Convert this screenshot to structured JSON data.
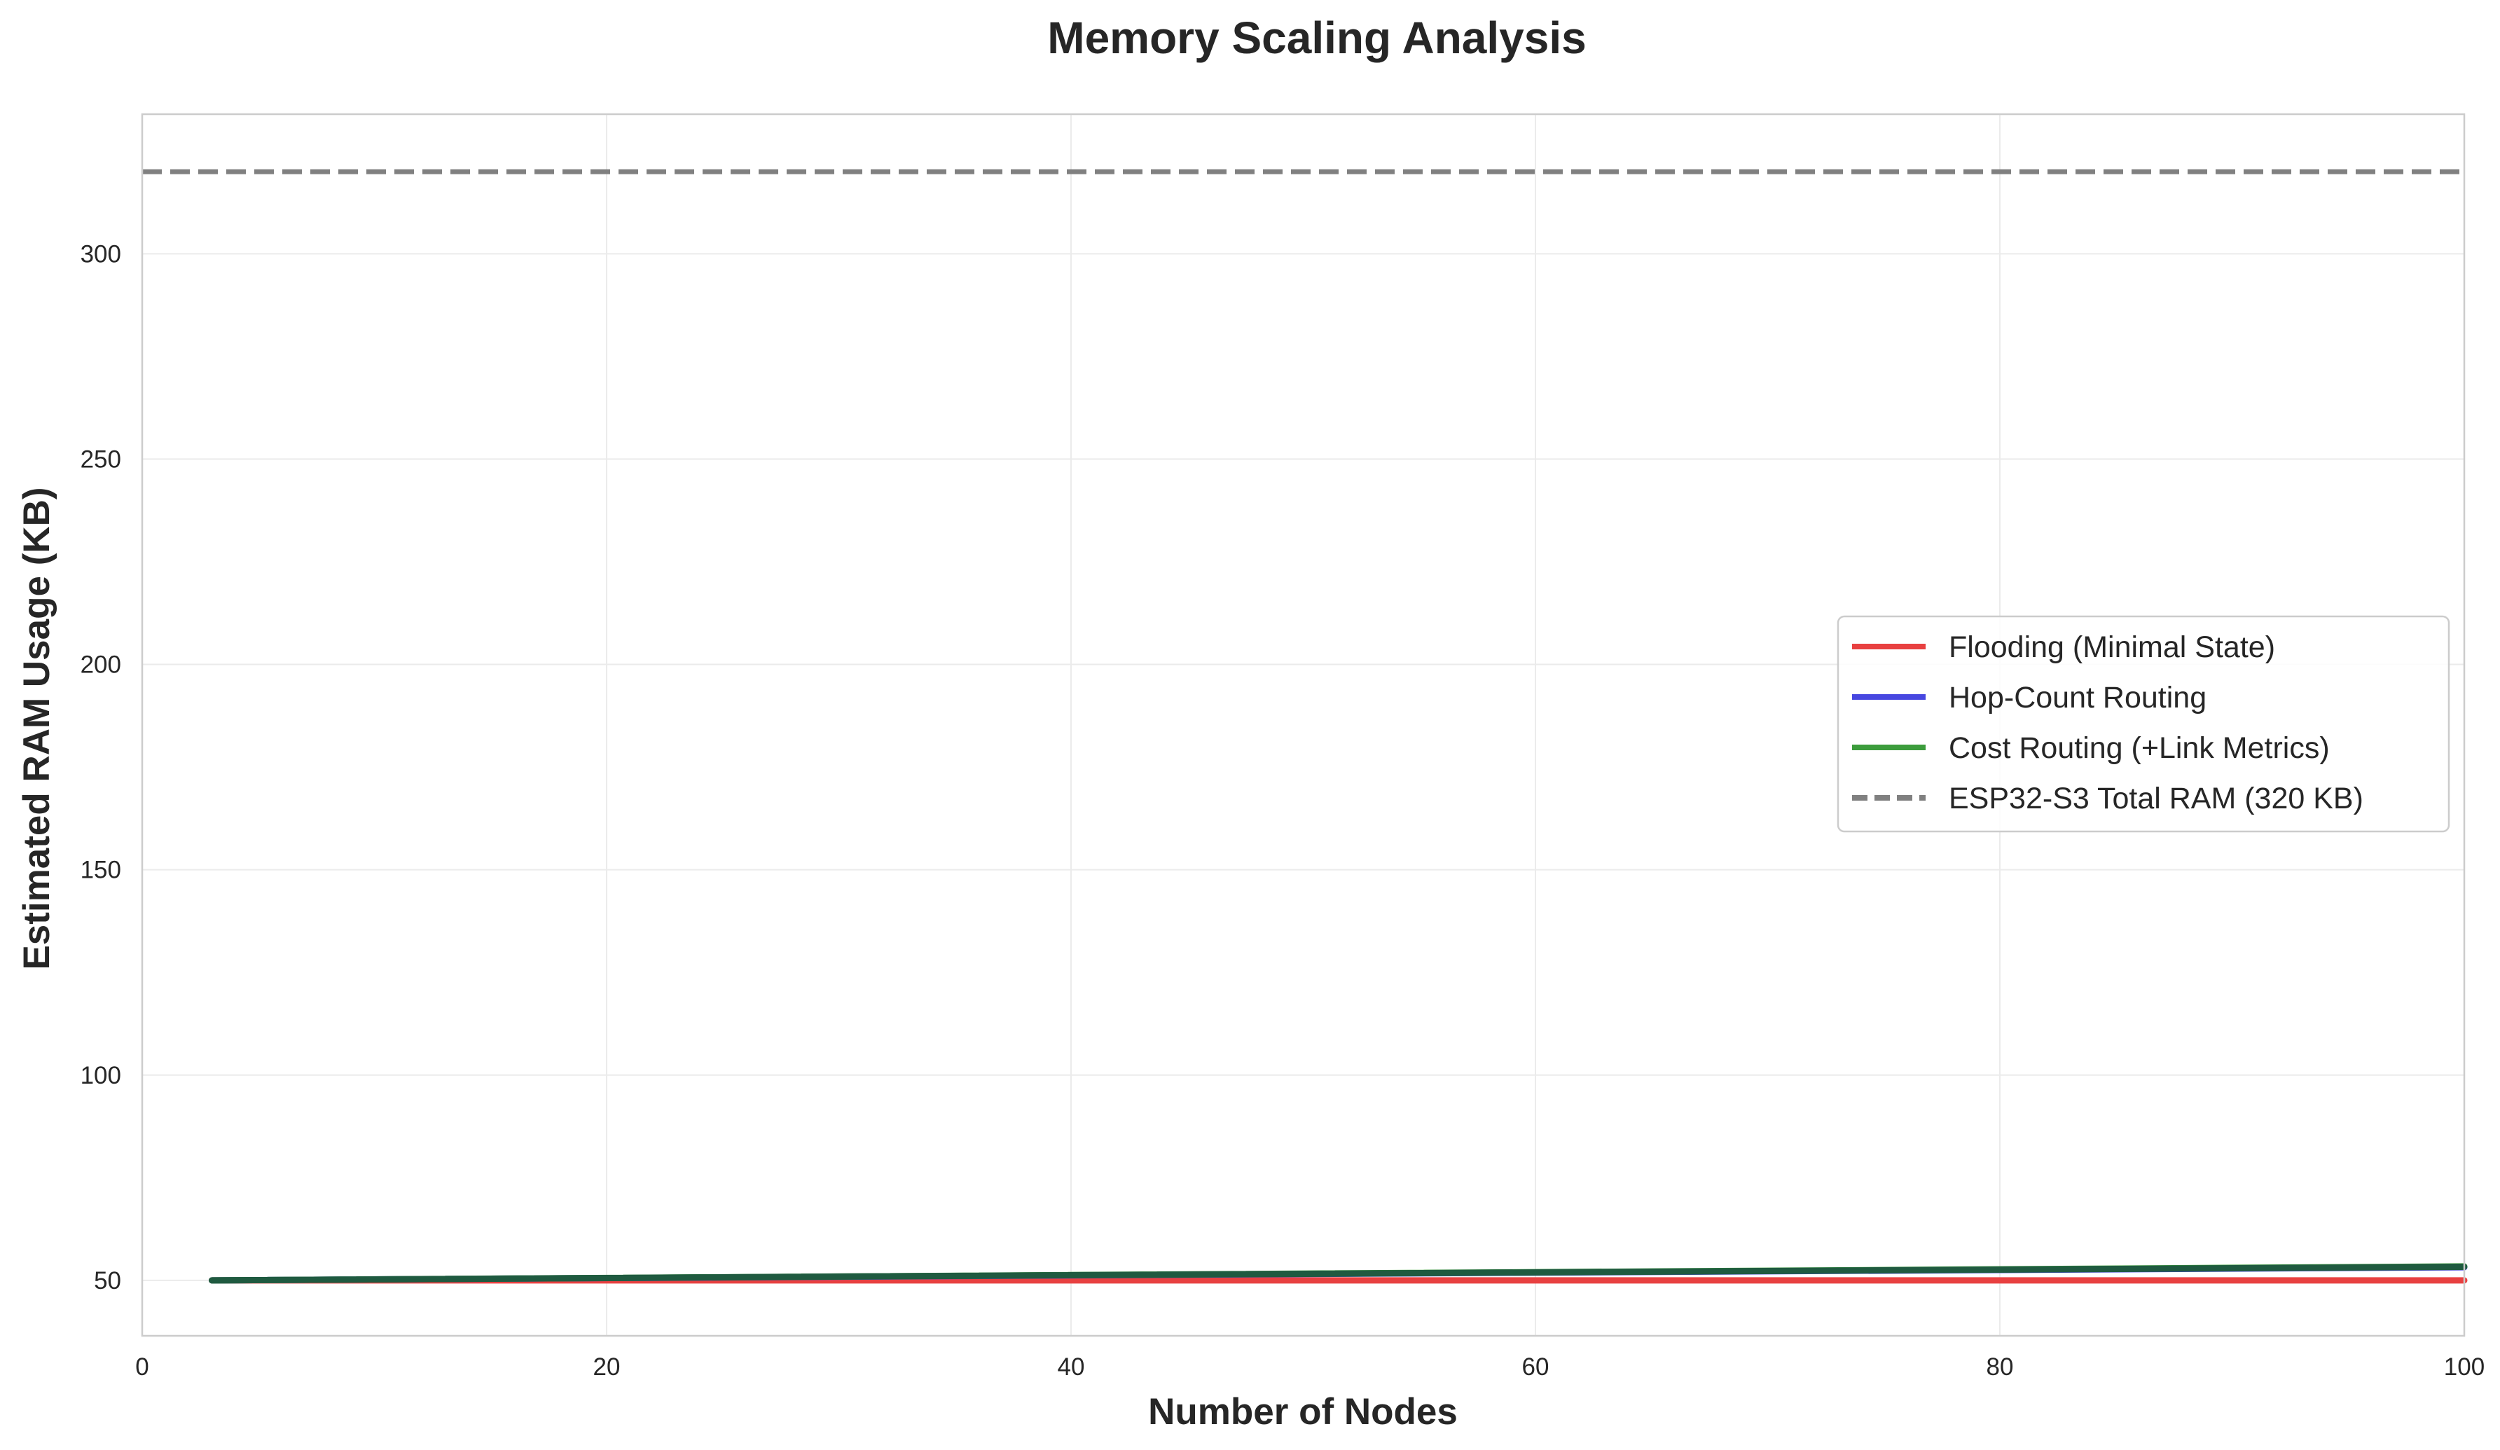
{
  "chart_data": {
    "type": "line",
    "title": "Memory Scaling Analysis",
    "xlabel": "Number of Nodes",
    "ylabel": "Estimated RAM Usage (KB)",
    "xlim": [
      0,
      100
    ],
    "ylim": [
      36.5,
      334
    ],
    "x_ticks": [
      "0",
      "20",
      "40",
      "60",
      "80",
      "100"
    ],
    "y_ticks": [
      "50",
      "100",
      "150",
      "200",
      "250",
      "300"
    ],
    "grid": true,
    "legend_position": "center-right",
    "series": [
      {
        "name": "Flooding (Minimal State)",
        "color": "#e84040",
        "x": [
          3,
          100
        ],
        "y": [
          50,
          50
        ]
      },
      {
        "name": "Hop-Count Routing",
        "color": "#4747e0",
        "x": [
          3,
          100
        ],
        "y": [
          50,
          53.2
        ]
      },
      {
        "name": "Cost Routing (+Link Metrics)",
        "color": "#3c9c3c",
        "x": [
          3,
          100
        ],
        "y": [
          50,
          53.4
        ]
      }
    ],
    "reference_lines": [
      {
        "name": "ESP32-S3 Total RAM (320 KB)",
        "y": 320,
        "color": "#808080",
        "style": "dashed"
      }
    ]
  }
}
